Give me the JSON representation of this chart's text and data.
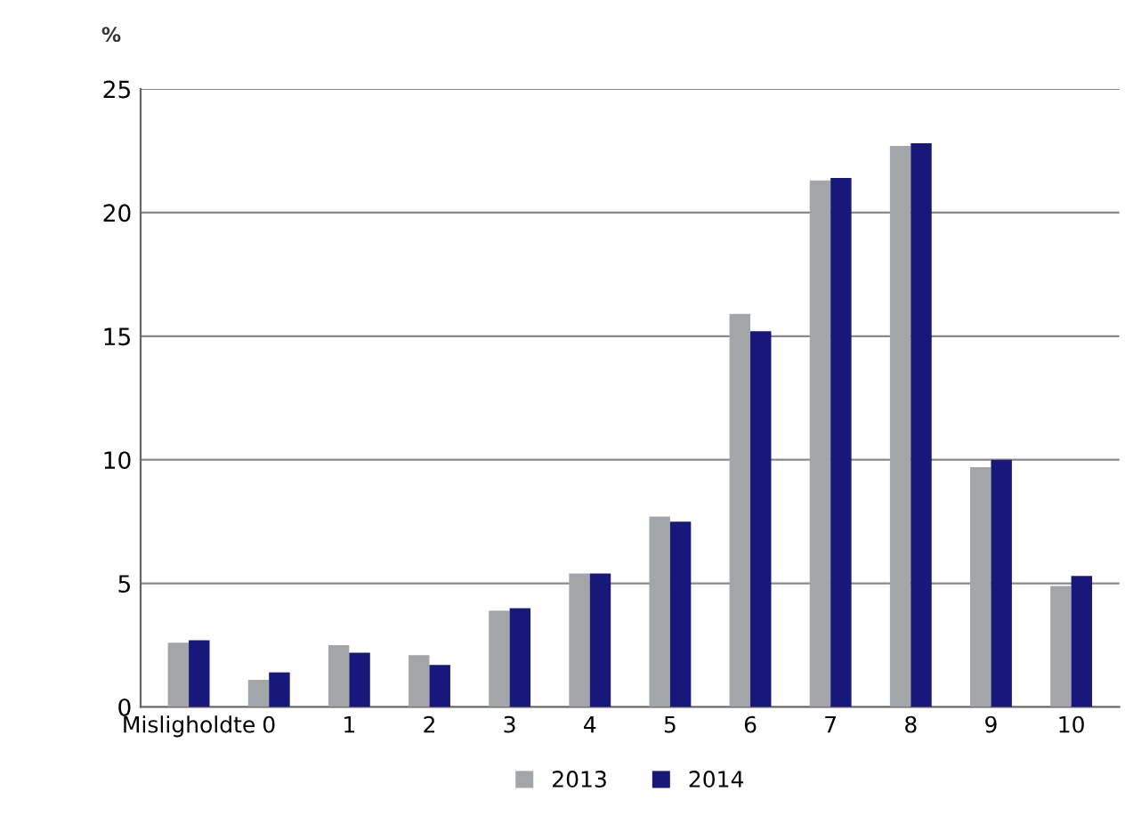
{
  "chart_data": {
    "type": "bar",
    "ylabel": "%",
    "categories": [
      "Misligholdte",
      "0",
      "1",
      "2",
      "3",
      "4",
      "5",
      "6",
      "7",
      "8",
      "9",
      "10"
    ],
    "series": [
      {
        "name": "2013",
        "color": "#a2a6a9",
        "values": [
          2.6,
          1.1,
          2.5,
          2.1,
          3.9,
          5.4,
          7.7,
          15.9,
          21.3,
          22.7,
          9.7,
          4.9
        ]
      },
      {
        "name": "2014",
        "color": "#18187a",
        "values": [
          2.7,
          1.4,
          2.2,
          1.7,
          4.0,
          5.4,
          7.5,
          15.2,
          21.4,
          22.8,
          10.0,
          5.3
        ]
      }
    ],
    "ylim": [
      0,
      25
    ],
    "yticks": [
      0,
      5,
      10,
      15,
      20,
      25
    ],
    "grid": "y",
    "legend": "bottom"
  }
}
